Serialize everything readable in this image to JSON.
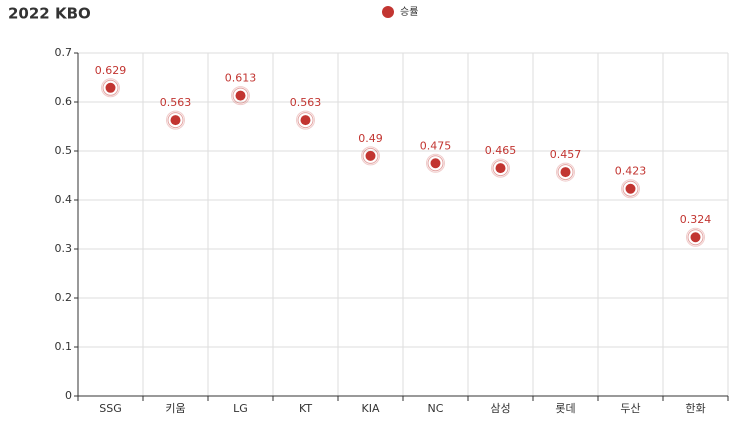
{
  "chart_data": {
    "type": "scatter",
    "title": "2022 KBO",
    "categories": [
      "SSG",
      "키움",
      "LG",
      "KT",
      "KIA",
      "NC",
      "삼성",
      "롯데",
      "두산",
      "한화"
    ],
    "series": [
      {
        "name": "승률",
        "color": "#c23531",
        "values": [
          0.629,
          0.563,
          0.613,
          0.563,
          0.49,
          0.475,
          0.465,
          0.457,
          0.423,
          0.324
        ]
      }
    ],
    "ylim": [
      0,
      0.7
    ],
    "yticks": [
      0,
      0.1,
      0.2,
      0.3,
      0.4,
      0.5,
      0.6,
      0.7
    ],
    "grid": true
  }
}
